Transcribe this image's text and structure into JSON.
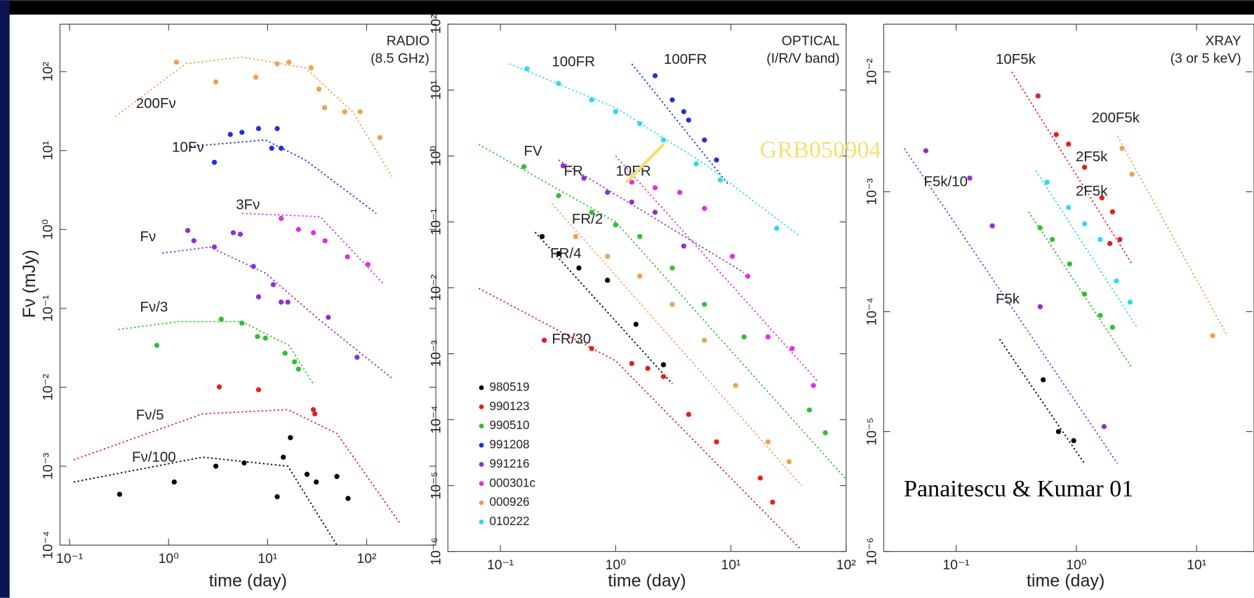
{
  "chart_data": [
    {
      "type": "scatter",
      "title": "RADIO",
      "subtitle": "(8.5 GHz)",
      "xlabel": "time (day)",
      "ylabel": "Fν (mJy)",
      "log_x": true,
      "log_y": true,
      "xlim": [
        0.08,
        500
      ],
      "ylim": [
        0.0001,
        400
      ],
      "xticks": [
        {
          "value": 0.1,
          "label": "10⁻¹"
        },
        {
          "value": 1,
          "label": "10⁰"
        },
        {
          "value": 10,
          "label": "10¹"
        },
        {
          "value": 100,
          "label": "10²"
        }
      ],
      "yticks": [
        {
          "value": 0.0001,
          "label": "10⁻⁴"
        },
        {
          "value": 0.001,
          "label": "10⁻³"
        },
        {
          "value": 0.01,
          "label": "10⁻²"
        },
        {
          "value": 0.1,
          "label": "10⁻¹"
        },
        {
          "value": 1,
          "label": "10⁰"
        },
        {
          "value": 10,
          "label": "10¹"
        },
        {
          "value": 100,
          "label": "10²"
        }
      ],
      "series": [
        {
          "label": "200Fν",
          "color": "#f0a050",
          "x": [
            1.2,
            3.0,
            7.6,
            12.5,
            16.4,
            27.5,
            33,
            37.6,
            60,
            86,
            136
          ],
          "values": [
            132,
            74,
            85,
            126,
            132,
            112,
            60,
            35,
            31,
            31,
            14.6
          ],
          "model": {
            "x": [
              0.29,
              1.5,
              5.5,
              24,
              72,
              180
            ],
            "values": [
              27,
              126,
              153,
              112,
              31,
              4.7
            ]
          }
        },
        {
          "label": "10Fν",
          "color": "#2030e0",
          "x": [
            2.9,
            4.2,
            5.5,
            8.1,
            12.5,
            11,
            13.7
          ],
          "values": [
            7.1,
            16,
            17,
            19,
            19,
            10.7,
            10.7
          ],
          "model": {
            "x": [
              1.5,
              9.5,
              24,
              125
            ],
            "values": [
              11.2,
              13.6,
              7.6,
              1.6
            ]
          }
        },
        {
          "label": "3Fν",
          "color": "#e030e0",
          "x": [
            13.7,
            20.5,
            29,
            38,
            64,
            103
          ],
          "values": [
            1.38,
            1.0,
            0.91,
            0.72,
            0.45,
            0.36
          ],
          "model": {
            "x": [
              5.5,
              34,
              150
            ],
            "values": [
              1.6,
              1.45,
              0.2
            ]
          }
        },
        {
          "label": "Fν",
          "color": "#9030d0",
          "x": [
            1.56,
            1.8,
            2.9,
            4.5,
            5.3,
            7.2,
            8.1,
            11.4,
            13.7,
            16,
            41,
            80
          ],
          "values": [
            0.97,
            0.72,
            0.6,
            0.91,
            0.87,
            0.34,
            0.14,
            0.2,
            0.12,
            0.12,
            0.077,
            0.024
          ],
          "model": {
            "x": [
              0.86,
              2.6,
              9.5,
              34,
              180
            ],
            "values": [
              0.5,
              0.6,
              0.28,
              0.07,
              0.013
            ]
          }
        },
        {
          "label": "Fν/3",
          "color": "#30c030",
          "x": [
            0.76,
            3.4,
            5.5,
            7.9,
            9.5,
            15,
            18.7,
            20.5
          ],
          "values": [
            0.034,
            0.073,
            0.065,
            0.044,
            0.042,
            0.027,
            0.021,
            0.017
          ],
          "model": {
            "x": [
              0.31,
              1.25,
              5.5,
              16.4,
              29
            ],
            "values": [
              0.054,
              0.068,
              0.068,
              0.034,
              0.011
            ]
          }
        },
        {
          "label": "Fν/5",
          "color": "#e02020",
          "x": [
            3.25,
            8.1,
            29,
            30
          ],
          "values": [
            0.0101,
            0.0093,
            0.0052,
            0.0046
          ],
          "model": {
            "x": [
              0.11,
              2.2,
              16,
              50,
              216
            ],
            "values": [
              0.0012,
              0.0046,
              0.0052,
              0.0026,
              0.00019
            ]
          }
        },
        {
          "label": "Fν/100",
          "color": "#000000",
          "x": [
            0.32,
            1.14,
            3.0,
            5.8,
            12.5,
            14.4,
            17,
            25,
            31,
            50,
            65
          ],
          "values": [
            0.00044,
            0.00063,
            0.001,
            0.0011,
            0.00041,
            0.0013,
            0.0023,
            0.00079,
            0.00063,
            0.00074,
            0.00039
          ],
          "model": {
            "x": [
              0.11,
              2.2,
              16,
              50
            ],
            "values": [
              0.00063,
              0.0013,
              0.001,
              0.0001
            ]
          }
        }
      ]
    },
    {
      "type": "scatter",
      "title": "OPTICAL",
      "subtitle": "(I/R/V band)",
      "xlabel": "time (day)",
      "log_x": true,
      "log_y": true,
      "legend": "lower left",
      "annotations": [
        "GRB050904"
      ],
      "xlim": [
        0.035,
        100
      ],
      "ylim": [
        1e-06,
        100
      ],
      "xticks": [
        {
          "value": 0.1,
          "label": "10⁻¹"
        },
        {
          "value": 1,
          "label": "10⁰"
        },
        {
          "value": 10,
          "label": "10¹"
        },
        {
          "value": 100,
          "label": "10²"
        }
      ],
      "yticks": [
        {
          "value": 1e-06,
          "label": "10⁻⁶"
        },
        {
          "value": 1e-05,
          "label": "10⁻⁵"
        },
        {
          "value": 0.0001,
          "label": "10⁻⁴"
        },
        {
          "value": 0.001,
          "label": "10⁻³"
        },
        {
          "value": 0.01,
          "label": "10⁻²"
        },
        {
          "value": 0.1,
          "label": "10⁻¹"
        },
        {
          "value": 1,
          "label": "10⁰"
        },
        {
          "value": 10,
          "label": "10¹"
        },
        {
          "value": 100,
          "label": "10²"
        }
      ],
      "series": [
        {
          "name": "980519",
          "label": "FR/4",
          "color": "#000000",
          "x": [
            0.23,
            0.32,
            0.48,
            0.85,
            1.5,
            2.6
          ],
          "values": [
            0.06,
            0.033,
            0.02,
            0.013,
            0.0028,
            0.00068
          ],
          "model": {
            "x": [
              0.2,
              3.1
            ],
            "values": [
              0.07,
              0.00035
            ]
          }
        },
        {
          "name": "990123",
          "label": "FR/30",
          "color": "#e02020",
          "x": [
            0.24,
            0.62,
            1.38,
            1.9,
            2.6,
            4.3,
            7.5,
            18,
            23
          ],
          "values": [
            0.0016,
            0.0012,
            0.00071,
            0.0006,
            0.00045,
            0.00012,
            4.6e-05,
            1.3e-05,
            5.6e-06
          ],
          "model": {
            "x": [
              0.065,
              1,
              40
            ],
            "values": [
              0.0098,
              0.00078,
              1.1e-06
            ]
          }
        },
        {
          "name": "990510",
          "label": "FV",
          "color": "#30c030",
          "x": [
            0.16,
            0.32,
            0.62,
            1.0,
            1.62,
            3.1,
            5.9,
            13,
            48,
            66
          ],
          "values": [
            0.69,
            0.25,
            0.14,
            0.09,
            0.06,
            0.02,
            0.0056,
            0.0018,
            0.00014,
            6.3e-05
          ],
          "model": {
            "x": [
              0.065,
              1,
              98
            ],
            "values": [
              1.5,
              0.1,
              1.3e-05
            ]
          }
        },
        {
          "name": "991208",
          "label": "100FR",
          "color": "#2030e0",
          "x": [
            2.2,
            3.1,
            3.9,
            4.3,
            5.9,
            7.5
          ],
          "values": [
            16.5,
            7.1,
            4.7,
            3.5,
            1.75,
            0.87
          ],
          "model": {
            "x": [
              1.38,
              9.5
            ],
            "values": [
              25,
              0.37
            ]
          }
        },
        {
          "name": "991216",
          "label": "FR",
          "color": "#9030d0",
          "x": [
            0.35,
            0.53,
            0.85,
            1.38,
            2.2,
            3.9
          ],
          "values": [
            0.71,
            0.46,
            0.28,
            0.2,
            0.14,
            0.043
          ],
          "model": {
            "x": [
              0.32,
              13
            ],
            "values": [
              0.87,
              0.017
            ]
          }
        },
        {
          "name": "000301c",
          "label": "10FR",
          "color": "#e030e0",
          "x": [
            1.38,
            2.2,
            3.6,
            5.9,
            10.3,
            14,
            21,
            34,
            52
          ],
          "values": [
            0.4,
            0.33,
            0.28,
            0.16,
            0.03,
            0.015,
            0.0018,
            0.0012,
            0.00033
          ],
          "model": {
            "x": [
              1,
              56
            ],
            "values": [
              1,
              0.00039
            ]
          }
        },
        {
          "name": "000926",
          "label": "FR/2",
          "color": "#f0a050",
          "x": [
            0.45,
            0.85,
            1.62,
            3.1,
            5.9,
            11,
            21,
            32
          ],
          "values": [
            0.06,
            0.03,
            0.015,
            0.0056,
            0.0016,
            0.00033,
            4.6e-05,
            2.3e-05
          ],
          "model": {
            "x": [
              0.28,
              41
            ],
            "values": [
              0.19,
              1e-05
            ]
          }
        },
        {
          "name": "010222",
          "label": "100FR",
          "color": "#30d8f0",
          "x": [
            0.17,
            0.32,
            0.62,
            1.0,
            1.62,
            2.6,
            5.0,
            8.1,
            25
          ],
          "values": [
            21,
            12.6,
            7.1,
            4.7,
            3.1,
            1.75,
            0.76,
            0.43,
            0.08
          ],
          "model": {
            "x": [
              0.12,
              1,
              5.9,
              40
            ],
            "values": [
              25,
              5.4,
              0.76,
              0.06
            ]
          }
        }
      ]
    },
    {
      "type": "scatter",
      "title": "XRAY",
      "subtitle": "(3 or 5 keV)",
      "xlabel": "time (day)",
      "log_x": true,
      "log_y": true,
      "annotations": [
        "Panaitescu & Kumar 01"
      ],
      "xlim": [
        0.025,
        30
      ],
      "ylim": [
        1e-06,
        0.025
      ],
      "xticks": [
        {
          "value": 0.1,
          "label": "10⁻¹"
        },
        {
          "value": 1,
          "label": "10⁰"
        },
        {
          "value": 10,
          "label": "10¹"
        }
      ],
      "yticks": [
        {
          "value": 1e-06,
          "label": "10⁻⁶"
        },
        {
          "value": 1e-05,
          "label": "10⁻⁵"
        },
        {
          "value": 0.0001,
          "label": "10⁻⁴"
        },
        {
          "value": 0.001,
          "label": "10⁻³"
        },
        {
          "value": 0.01,
          "label": "10⁻²"
        }
      ],
      "series": [
        {
          "label": "10F5k",
          "color": "#e02020",
          "x": [
            0.48,
            0.68,
            0.86,
            1.17,
            1.63,
            2.0,
            1.9,
            2.3
          ],
          "values": [
            0.0063,
            0.003,
            0.0025,
            0.0016,
            0.00089,
            0.00068,
            0.00037,
            0.0004
          ],
          "model": {
            "x": [
              0.29,
              2.9
            ],
            "values": [
              0.01,
              0.00025
            ]
          }
        },
        {
          "label": "200F5k",
          "color": "#f0a050",
          "x": [
            2.4,
            2.9,
            13.6
          ],
          "values": [
            0.0023,
            0.0014,
            6.3e-05
          ],
          "model": {
            "x": [
              2.2,
              18
            ],
            "values": [
              0.0029,
              6.3e-05
            ]
          }
        },
        {
          "label": "2F5k",
          "color": "#30d8f0",
          "x": [
            0.57,
            0.86,
            1.17,
            1.58,
            2.15,
            2.8
          ],
          "values": [
            0.0012,
            0.00074,
            0.00054,
            0.0004,
            0.00018,
            0.00012
          ],
          "model": {
            "x": [
              0.46,
              3.2
            ],
            "values": [
              0.0015,
              7.4e-05
            ]
          }
        },
        {
          "label": "2F5k",
          "color": "#30c030",
          "x": [
            0.5,
            0.63,
            0.88,
            1.17,
            1.58,
            2.0
          ],
          "values": [
            0.0005,
            0.0004,
            0.00025,
            0.00014,
            9.3e-05,
            7.4e-05
          ],
          "model": {
            "x": [
              0.4,
              2.9
            ],
            "values": [
              0.00068,
              3.4e-05
            ]
          }
        },
        {
          "label": "F5k/10",
          "color": "#9030d0",
          "x": [
            0.056,
            0.13,
            0.2,
            0.5,
            1.7
          ],
          "values": [
            0.0022,
            0.0013,
            0.00052,
            0.00011,
            1.1e-05
          ],
          "model": {
            "x": [
              0.037,
              2.2
            ],
            "values": [
              0.0023,
              5.4e-06
            ]
          }
        },
        {
          "label": "F5k",
          "color": "#000000",
          "x": [
            0.53,
            0.71,
            0.95
          ],
          "values": [
            2.7e-05,
            1e-05,
            8.4e-06
          ],
          "model": {
            "x": [
              0.23,
              1.17
            ],
            "values": [
              5.9e-05,
              5.4e-06
            ]
          }
        }
      ]
    }
  ]
}
